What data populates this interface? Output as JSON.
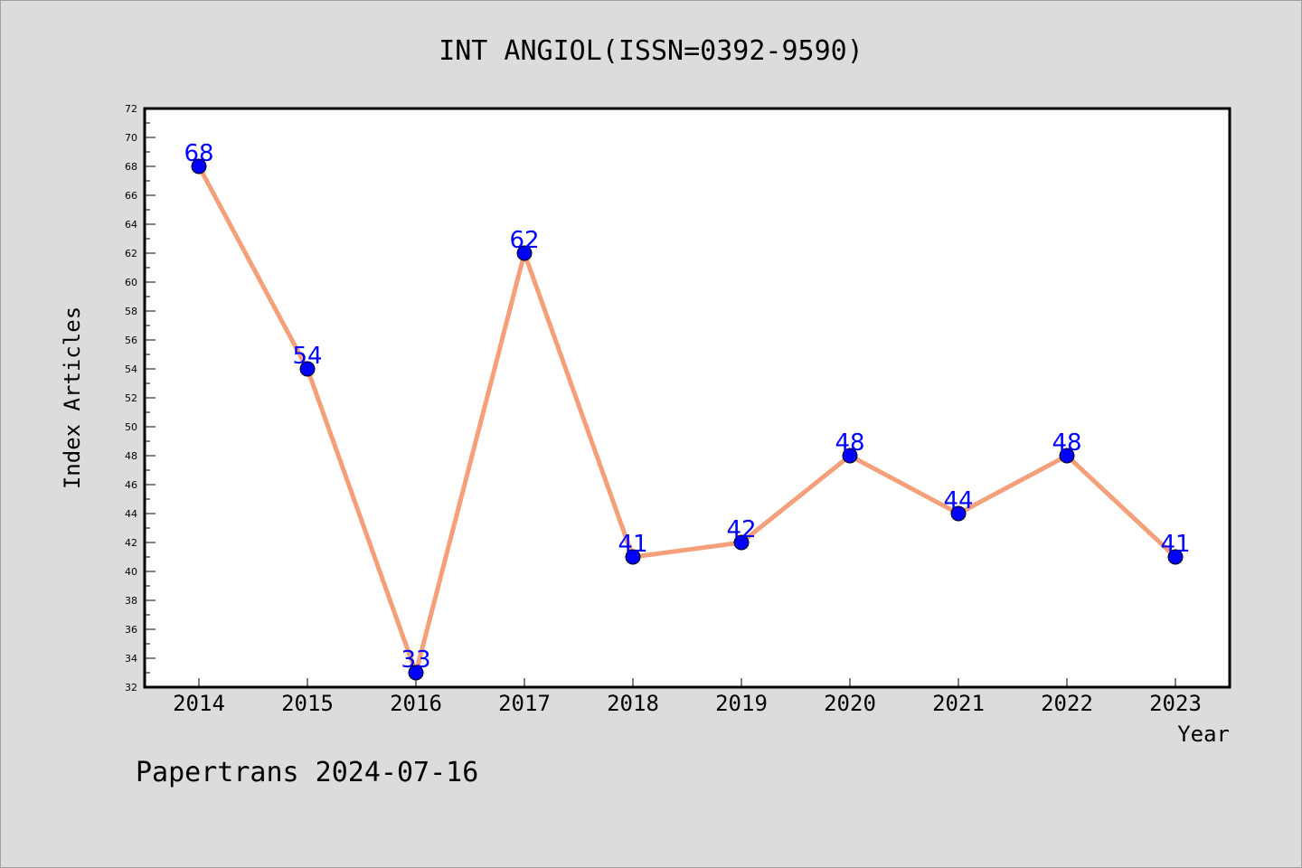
{
  "chart_data": {
    "type": "line",
    "title": "INT ANGIOL(ISSN=0392-9590)",
    "xlabel": "Year",
    "ylabel": "Index Articles",
    "categories": [
      "2014",
      "2015",
      "2016",
      "2017",
      "2018",
      "2019",
      "2020",
      "2021",
      "2022",
      "2023"
    ],
    "values": [
      68,
      54,
      33,
      62,
      41,
      42,
      48,
      44,
      48,
      41
    ],
    "ylim": [
      32,
      72
    ],
    "ytick_step": 2,
    "grid": false,
    "legend": "none",
    "line_color": "#f5a07a",
    "marker_color": "#0000ff",
    "label_color": "#0000ff"
  },
  "footer": "Papertrans 2024-07-16",
  "colors": {
    "background": "#dcdcdc",
    "plot_background": "#ffffff"
  }
}
